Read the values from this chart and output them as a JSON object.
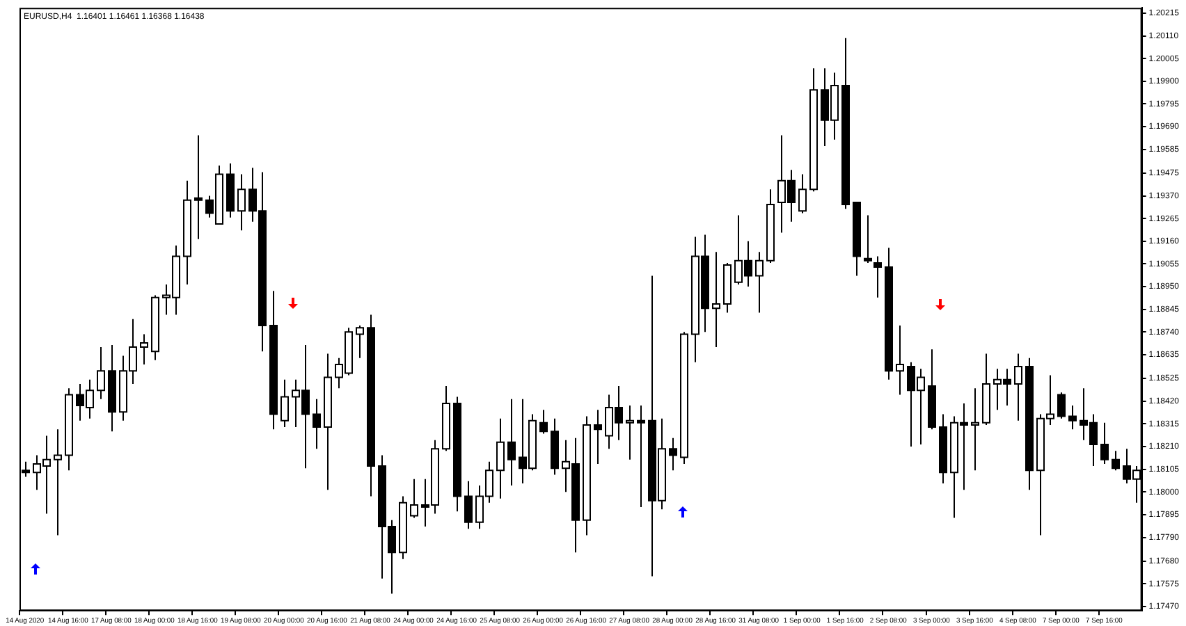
{
  "chart_data": {
    "type": "candlestick",
    "title": "EURUSD,H4  1.16401 1.16461 1.16368 1.16438",
    "colors": [
      "#000000",
      "#ffffff",
      "#ffffff",
      "#ffffff",
      "#ffffff",
      "#000000",
      "#ffffff",
      "#ffffff",
      "#000000",
      "#ffffff",
      "#ffffff",
      "#ffffff",
      "#ffffff",
      "#ffffff",
      "#ffffff",
      "#ffffff",
      "#000000",
      "#000000",
      "#ffffff",
      "#000000",
      "#ffffff",
      "#000000",
      "#000000",
      "#000000",
      "#ffffff",
      "#ffffff",
      "#000000",
      "#000000",
      "#ffffff",
      "#ffffff",
      "#ffffff",
      "#ffffff",
      "#000000",
      "#000000",
      "#000000",
      "#ffffff",
      "#ffffff",
      "#000000",
      "#ffffff",
      "#ffffff",
      "#000000",
      "#000000",
      "#ffffff",
      "#ffffff",
      "#ffffff",
      "#000000",
      "#000000",
      "#ffffff",
      "#000000",
      "#000000",
      "#ffffff",
      "#000000",
      "#ffffff",
      "#000000",
      "#ffffff",
      "#000000",
      "#ffffff",
      "#000000",
      "#000000",
      "#ffffff",
      "#000000",
      "#ffffff",
      "#ffffff",
      "#000000",
      "#ffffff",
      "#ffffff",
      "#ffffff",
      "#000000",
      "#ffffff",
      "#ffffff",
      "#ffffff",
      "#000000",
      "#ffffff",
      "#ffffff",
      "#000000",
      "#ffffff",
      "#000000",
      "#000000",
      "#000000",
      "#000000",
      "#000000",
      "#ffffff",
      "#000000",
      "#ffffff",
      "#000000",
      "#000000",
      "#ffffff",
      "#000000",
      "#ffffff",
      "#ffffff",
      "#ffffff",
      "#000000",
      "#ffffff",
      "#000000",
      "#ffffff",
      "#ffffff",
      "#000000",
      "#000000",
      "#000000",
      "#000000",
      "#000000",
      "#000000",
      "#000000",
      "#ffffff"
    ],
    "categories": [
      "14 Aug 2020",
      null,
      null,
      null,
      "14 Aug 16:00",
      null,
      null,
      null,
      "17 Aug 08:00",
      null,
      null,
      null,
      "18 Aug 00:00",
      null,
      null,
      null,
      "18 Aug 16:00",
      null,
      null,
      null,
      "19 Aug 08:00",
      null,
      null,
      null,
      "20 Aug 00:00",
      null,
      null,
      null,
      "20 Aug 16:00",
      null,
      null,
      null,
      "21 Aug 08:00",
      null,
      null,
      null,
      "24 Aug 00:00",
      null,
      null,
      null,
      "24 Aug 16:00",
      null,
      null,
      null,
      "25 Aug 08:00",
      null,
      null,
      null,
      "26 Aug 00:00",
      null,
      null,
      null,
      "26 Aug 16:00",
      null,
      null,
      null,
      "27 Aug 08:00",
      null,
      null,
      null,
      "28 Aug 00:00",
      null,
      null,
      null,
      "28 Aug 16:00",
      null,
      null,
      null,
      "31 Aug 08:00",
      null,
      null,
      null,
      "1 Sep 00:00",
      null,
      null,
      null,
      "1 Sep 16:00",
      null,
      null,
      null,
      "2 Sep 08:00",
      null,
      null,
      null,
      "3 Sep 00:00",
      null,
      null,
      null,
      "3 Sep 16:00",
      null,
      null,
      null,
      "4 Sep 08:00",
      null,
      null,
      null,
      "7 Sep 00:00",
      null,
      null,
      null,
      "7 Sep 16:00",
      null,
      null,
      null
    ],
    "ohlc": [
      [
        1.181,
        1.1814,
        1.1807,
        1.1809
      ],
      [
        1.1809,
        1.1817,
        1.1801,
        1.1813
      ],
      [
        1.1812,
        1.1826,
        1.179,
        1.1815
      ],
      [
        1.1815,
        1.1829,
        1.178,
        1.1817
      ],
      [
        1.1817,
        1.1848,
        1.181,
        1.1845
      ],
      [
        1.1845,
        1.185,
        1.1833,
        1.184
      ],
      [
        1.1839,
        1.1852,
        1.1834,
        1.1847
      ],
      [
        1.1847,
        1.1867,
        1.1843,
        1.1856
      ],
      [
        1.1856,
        1.1868,
        1.1828,
        1.1837
      ],
      [
        1.1837,
        1.1863,
        1.1833,
        1.1856
      ],
      [
        1.1856,
        1.188,
        1.185,
        1.1867
      ],
      [
        1.1867,
        1.1873,
        1.1859,
        1.1869
      ],
      [
        1.1865,
        1.1891,
        1.1861,
        1.189
      ],
      [
        1.189,
        1.1896,
        1.1882,
        1.1891
      ],
      [
        1.189,
        1.1914,
        1.1882,
        1.1909
      ],
      [
        1.1909,
        1.1944,
        1.1896,
        1.1935
      ],
      [
        1.1936,
        1.1965,
        1.1917,
        1.1935
      ],
      [
        1.1935,
        1.1937,
        1.1927,
        1.1929
      ],
      [
        1.1924,
        1.1951,
        1.1924,
        1.1947
      ],
      [
        1.1947,
        1.1952,
        1.1927,
        1.193
      ],
      [
        1.193,
        1.1947,
        1.1921,
        1.194
      ],
      [
        1.194,
        1.195,
        1.1925,
        1.193
      ],
      [
        1.193,
        1.1948,
        1.1865,
        1.1877
      ],
      [
        1.1877,
        1.1893,
        1.1829,
        1.1836
      ],
      [
        1.1833,
        1.1852,
        1.183,
        1.1844
      ],
      [
        1.1844,
        1.1852,
        1.183,
        1.1847
      ],
      [
        1.1847,
        1.1868,
        1.1811,
        1.1836
      ],
      [
        1.1836,
        1.1843,
        1.182,
        1.183
      ],
      [
        1.183,
        1.1864,
        1.1801,
        1.1853
      ],
      [
        1.1853,
        1.1862,
        1.1848,
        1.1859
      ],
      [
        1.1855,
        1.1876,
        1.1854,
        1.1874
      ],
      [
        1.1873,
        1.1877,
        1.1862,
        1.1876
      ],
      [
        1.1876,
        1.1882,
        1.1798,
        1.1812
      ],
      [
        1.1812,
        1.1817,
        1.176,
        1.1784
      ],
      [
        1.1784,
        1.1787,
        1.1753,
        1.1772
      ],
      [
        1.1772,
        1.1798,
        1.1769,
        1.1795
      ],
      [
        1.1789,
        1.1806,
        1.1788,
        1.1794
      ],
      [
        1.1794,
        1.1806,
        1.1784,
        1.1793
      ],
      [
        1.1794,
        1.1824,
        1.179,
        1.182
      ],
      [
        1.182,
        1.1849,
        1.1819,
        1.1841
      ],
      [
        1.1841,
        1.1844,
        1.1791,
        1.1798
      ],
      [
        1.1798,
        1.1805,
        1.1783,
        1.1786
      ],
      [
        1.1786,
        1.1803,
        1.1783,
        1.1798
      ],
      [
        1.1798,
        1.1814,
        1.1795,
        1.181
      ],
      [
        1.181,
        1.1834,
        1.1797,
        1.1823
      ],
      [
        1.1823,
        1.1843,
        1.1803,
        1.1815
      ],
      [
        1.1816,
        1.1843,
        1.1804,
        1.1811
      ],
      [
        1.1811,
        1.1836,
        1.181,
        1.1833
      ],
      [
        1.1832,
        1.1838,
        1.1827,
        1.1828
      ],
      [
        1.1828,
        1.1834,
        1.1808,
        1.1811
      ],
      [
        1.1811,
        1.1824,
        1.18,
        1.1814
      ],
      [
        1.1813,
        1.1825,
        1.1772,
        1.1787
      ],
      [
        1.1787,
        1.1835,
        1.178,
        1.1831
      ],
      [
        1.1831,
        1.1838,
        1.1813,
        1.1829
      ],
      [
        1.1826,
        1.1845,
        1.182,
        1.1839
      ],
      [
        1.1839,
        1.1849,
        1.1824,
        1.1832
      ],
      [
        1.1832,
        1.184,
        1.1815,
        1.1833
      ],
      [
        1.1833,
        1.184,
        1.1793,
        1.1832
      ],
      [
        1.1833,
        1.19,
        1.1761,
        1.1796
      ],
      [
        1.1796,
        1.1834,
        1.1792,
        1.182
      ],
      [
        1.182,
        1.1825,
        1.181,
        1.1817
      ],
      [
        1.1816,
        1.1874,
        1.1813,
        1.1873
      ],
      [
        1.1873,
        1.1918,
        1.186,
        1.1909
      ],
      [
        1.1909,
        1.1919,
        1.1874,
        1.1885
      ],
      [
        1.1885,
        1.1911,
        1.1867,
        1.1887
      ],
      [
        1.1887,
        1.1906,
        1.1883,
        1.1905
      ],
      [
        1.1897,
        1.1928,
        1.1896,
        1.1907
      ],
      [
        1.1907,
        1.1916,
        1.1895,
        1.19
      ],
      [
        1.19,
        1.1911,
        1.1883,
        1.1907
      ],
      [
        1.1907,
        1.194,
        1.1906,
        1.1933
      ],
      [
        1.1934,
        1.1965,
        1.192,
        1.1944
      ],
      [
        1.1944,
        1.1949,
        1.1925,
        1.1934
      ],
      [
        1.193,
        1.1947,
        1.1929,
        1.194
      ],
      [
        1.194,
        1.1996,
        1.1939,
        1.1986
      ],
      [
        1.1986,
        1.1996,
        1.196,
        1.1972
      ],
      [
        1.1972,
        1.1994,
        1.1963,
        1.1988
      ],
      [
        1.1988,
        1.201,
        1.1931,
        1.1933
      ],
      [
        1.1934,
        1.1934,
        1.19,
        1.1909
      ],
      [
        1.1908,
        1.1928,
        1.1906,
        1.1907
      ],
      [
        1.1906,
        1.1909,
        1.189,
        1.1904
      ],
      [
        1.1904,
        1.1913,
        1.1852,
        1.1856
      ],
      [
        1.1856,
        1.1877,
        1.1845,
        1.1859
      ],
      [
        1.1858,
        1.186,
        1.1821,
        1.1847
      ],
      [
        1.1847,
        1.1857,
        1.1822,
        1.1853
      ],
      [
        1.1849,
        1.1866,
        1.1829,
        1.183
      ],
      [
        1.183,
        1.1836,
        1.1804,
        1.1809
      ],
      [
        1.1809,
        1.1835,
        1.1788,
        1.1832
      ],
      [
        1.1832,
        1.1841,
        1.1801,
        1.1831
      ],
      [
        1.1831,
        1.1848,
        1.181,
        1.1832
      ],
      [
        1.1832,
        1.1864,
        1.1831,
        1.185
      ],
      [
        1.185,
        1.1857,
        1.1838,
        1.1852
      ],
      [
        1.1852,
        1.1857,
        1.184,
        1.185
      ],
      [
        1.185,
        1.1864,
        1.1833,
        1.1858
      ],
      [
        1.1858,
        1.1862,
        1.1801,
        1.181
      ],
      [
        1.181,
        1.1836,
        1.178,
        1.1834
      ],
      [
        1.1834,
        1.1854,
        1.1831,
        1.1836
      ],
      [
        1.1845,
        1.1846,
        1.1834,
        1.1835
      ],
      [
        1.1835,
        1.184,
        1.1829,
        1.1833
      ],
      [
        1.1833,
        1.1848,
        1.1824,
        1.1831
      ],
      [
        1.1832,
        1.1836,
        1.1812,
        1.1822
      ],
      [
        1.1822,
        1.1832,
        1.1813,
        1.1815
      ],
      [
        1.1815,
        1.1819,
        1.181,
        1.1811
      ],
      [
        1.1812,
        1.182,
        1.1804,
        1.1806
      ],
      [
        1.1806,
        1.1812,
        1.1795,
        1.181
      ]
    ],
    "ylim": [
      1.1745,
      1.2024
    ],
    "yticks": [
      {
        "value": 1.1747,
        "label": "1.17470"
      },
      1.17575,
      {
        "value": 1.1768,
        "label": "1.17680"
      },
      {
        "value": 1.1779,
        "label": "1.17790"
      },
      1.17895,
      {
        "value": 1.18,
        "label": "1.18000"
      },
      1.18105,
      {
        "value": 1.1821,
        "label": "1.18210"
      },
      1.18315,
      {
        "value": 1.1842,
        "label": "1.18420"
      },
      1.18525,
      1.18635,
      {
        "value": 1.1874,
        "label": "1.18740"
      },
      1.18845,
      {
        "value": 1.1895,
        "label": "1.18950"
      },
      1.19055,
      {
        "value": 1.1916,
        "label": "1.19160"
      },
      1.19265,
      {
        "value": 1.1937,
        "label": "1.19370"
      },
      1.19475,
      1.19585,
      {
        "value": 1.1969,
        "label": "1.19690"
      },
      1.19795,
      {
        "value": 1.199,
        "label": "1.19900"
      },
      1.20005,
      {
        "value": 1.2011,
        "label": "1.20110"
      },
      1.20215
    ]
  }
}
